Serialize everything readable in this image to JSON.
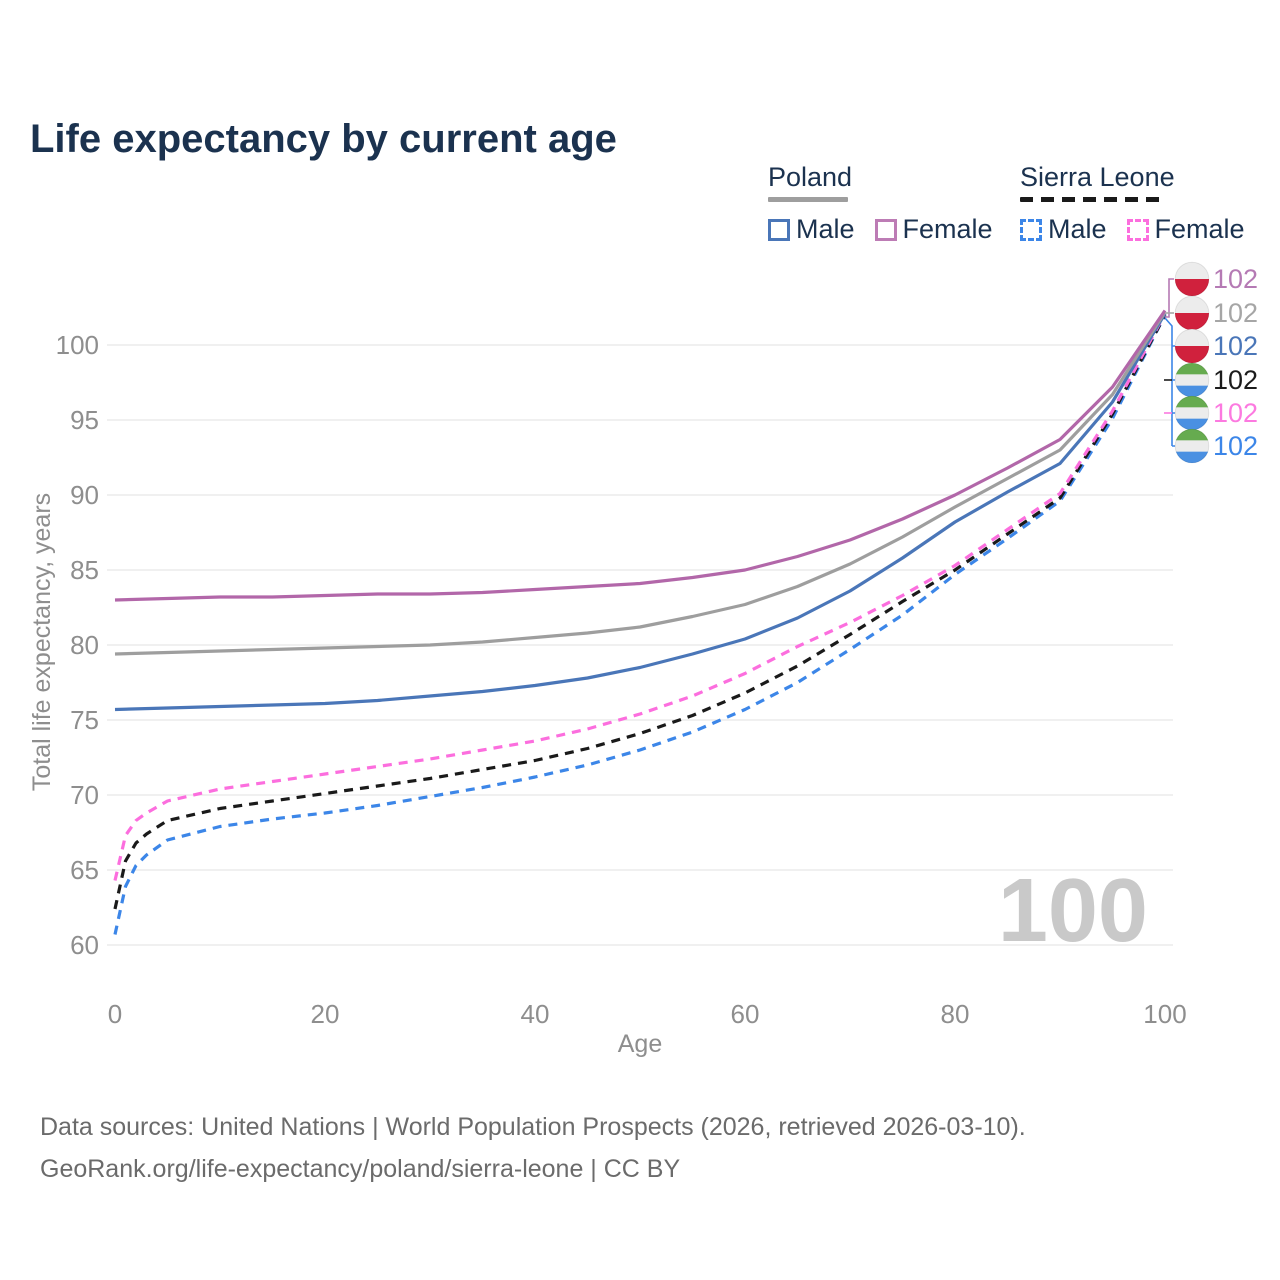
{
  "title": "Life expectancy by current age",
  "legend": {
    "groups": [
      {
        "label": "Poland",
        "key_style": "solid",
        "key_color": "#9e9e9e",
        "items": [
          {
            "label": "Male",
            "swatch_color": "#4a76b8",
            "swatch_style": "solid"
          },
          {
            "label": "Female",
            "swatch_color": "#bd7cb5",
            "swatch_style": "solid"
          }
        ]
      },
      {
        "label": "Sierra Leone",
        "key_style": "dashed",
        "key_color": "#1a1a1a",
        "items": [
          {
            "label": "Male",
            "swatch_color": "#3c86e8",
            "swatch_style": "dashed"
          },
          {
            "label": "Female",
            "swatch_color": "#fc6ede",
            "swatch_style": "dashed"
          }
        ]
      }
    ]
  },
  "footer": {
    "line1": "Data sources: United Nations | World Population Prospects (2026, retrieved 2026-03-10).",
    "line2": "GeoRank.org/life-expectancy/poland/sierra-leone | CC BY"
  },
  "chart_data": {
    "type": "line",
    "title": "Life expectancy by current age",
    "xlabel": "Age",
    "ylabel": "Total life expectancy, years",
    "xlim": [
      0,
      100
    ],
    "ylim": [
      60,
      102.5
    ],
    "xticks": [
      0,
      20,
      40,
      60,
      80,
      100
    ],
    "yticks": [
      60,
      65,
      70,
      75,
      80,
      85,
      90,
      95,
      100
    ],
    "grid": "horizontal",
    "watermark": "100",
    "legend_position": "top-right",
    "flags": {
      "poland": [
        "#ececec",
        "#d0213d"
      ],
      "sierra-leone": [
        "#66ab4f",
        "#ececec",
        "#4a90e2"
      ]
    },
    "series": [
      {
        "id": "sierra-leone-male",
        "name": "Sierra Leone Male",
        "country": "Sierra Leone",
        "sex": "male",
        "line_style": "dashed",
        "color": "#3c86e8",
        "points": [
          [
            0,
            60.7
          ],
          [
            1,
            63.9
          ],
          [
            2,
            65.3
          ],
          [
            3,
            66.0
          ],
          [
            5,
            67.0
          ],
          [
            10,
            67.9
          ],
          [
            15,
            68.4
          ],
          [
            20,
            68.8
          ],
          [
            25,
            69.3
          ],
          [
            30,
            69.9
          ],
          [
            35,
            70.5
          ],
          [
            40,
            71.2
          ],
          [
            45,
            72.0
          ],
          [
            50,
            73.0
          ],
          [
            55,
            74.2
          ],
          [
            60,
            75.7
          ],
          [
            65,
            77.5
          ],
          [
            70,
            79.7
          ],
          [
            75,
            82.0
          ],
          [
            80,
            84.7
          ],
          [
            85,
            87.1
          ],
          [
            90,
            89.6
          ],
          [
            95,
            95.1
          ],
          [
            100,
            102.0
          ]
        ]
      },
      {
        "id": "sierra-leone-all",
        "name": "Sierra Leone Both sexes",
        "country": "Sierra Leone",
        "sex": "all",
        "line_style": "dashed",
        "color": "#1a1a1a",
        "points": [
          [
            0,
            62.4
          ],
          [
            1,
            65.6
          ],
          [
            2,
            66.8
          ],
          [
            3,
            67.4
          ],
          [
            5,
            68.3
          ],
          [
            10,
            69.1
          ],
          [
            15,
            69.6
          ],
          [
            20,
            70.1
          ],
          [
            25,
            70.6
          ],
          [
            30,
            71.1
          ],
          [
            35,
            71.7
          ],
          [
            40,
            72.3
          ],
          [
            45,
            73.1
          ],
          [
            50,
            74.1
          ],
          [
            55,
            75.3
          ],
          [
            60,
            76.8
          ],
          [
            65,
            78.6
          ],
          [
            70,
            80.7
          ],
          [
            75,
            82.9
          ],
          [
            80,
            85.0
          ],
          [
            85,
            87.4
          ],
          [
            90,
            89.8
          ],
          [
            95,
            95.4
          ],
          [
            100,
            102.0
          ]
        ]
      },
      {
        "id": "sierra-leone-female",
        "name": "Sierra Leone Female",
        "country": "Sierra Leone",
        "sex": "female",
        "line_style": "dashed",
        "color": "#fc6ede",
        "points": [
          [
            0,
            64.3
          ],
          [
            1,
            67.3
          ],
          [
            2,
            68.3
          ],
          [
            3,
            68.8
          ],
          [
            5,
            69.6
          ],
          [
            10,
            70.4
          ],
          [
            15,
            70.9
          ],
          [
            20,
            71.4
          ],
          [
            25,
            71.9
          ],
          [
            30,
            72.4
          ],
          [
            35,
            73.0
          ],
          [
            40,
            73.6
          ],
          [
            45,
            74.4
          ],
          [
            50,
            75.4
          ],
          [
            55,
            76.6
          ],
          [
            60,
            78.1
          ],
          [
            65,
            79.9
          ],
          [
            70,
            81.5
          ],
          [
            75,
            83.3
          ],
          [
            80,
            85.3
          ],
          [
            85,
            87.7
          ],
          [
            90,
            90.1
          ],
          [
            95,
            95.6
          ],
          [
            100,
            102.1
          ]
        ]
      },
      {
        "id": "poland-male",
        "name": "Poland Male",
        "country": "Poland",
        "sex": "male",
        "line_style": "solid",
        "color": "#4a76b8",
        "points": [
          [
            0,
            75.7
          ],
          [
            5,
            75.8
          ],
          [
            10,
            75.9
          ],
          [
            15,
            76.0
          ],
          [
            20,
            76.1
          ],
          [
            25,
            76.3
          ],
          [
            30,
            76.6
          ],
          [
            35,
            76.9
          ],
          [
            40,
            77.3
          ],
          [
            45,
            77.8
          ],
          [
            50,
            78.5
          ],
          [
            55,
            79.4
          ],
          [
            60,
            80.4
          ],
          [
            65,
            81.8
          ],
          [
            70,
            83.6
          ],
          [
            75,
            85.8
          ],
          [
            80,
            88.2
          ],
          [
            85,
            90.2
          ],
          [
            90,
            92.1
          ],
          [
            95,
            96.2
          ],
          [
            100,
            102.1
          ]
        ]
      },
      {
        "id": "poland-all",
        "name": "Poland Both sexes",
        "country": "Poland",
        "sex": "all",
        "line_style": "solid",
        "color": "#9e9e9e",
        "points": [
          [
            0,
            79.4
          ],
          [
            5,
            79.5
          ],
          [
            10,
            79.6
          ],
          [
            15,
            79.7
          ],
          [
            20,
            79.8
          ],
          [
            25,
            79.9
          ],
          [
            30,
            80.0
          ],
          [
            35,
            80.2
          ],
          [
            40,
            80.5
          ],
          [
            45,
            80.8
          ],
          [
            50,
            81.2
          ],
          [
            55,
            81.9
          ],
          [
            60,
            82.7
          ],
          [
            65,
            83.9
          ],
          [
            70,
            85.4
          ],
          [
            75,
            87.2
          ],
          [
            80,
            89.2
          ],
          [
            85,
            91.1
          ],
          [
            90,
            93.0
          ],
          [
            95,
            96.7
          ],
          [
            100,
            102.2
          ]
        ]
      },
      {
        "id": "poland-female",
        "name": "Poland Female",
        "country": "Poland",
        "sex": "female",
        "line_style": "solid",
        "color": "#b267a9",
        "points": [
          [
            0,
            83.0
          ],
          [
            5,
            83.1
          ],
          [
            10,
            83.2
          ],
          [
            15,
            83.2
          ],
          [
            20,
            83.3
          ],
          [
            25,
            83.4
          ],
          [
            30,
            83.4
          ],
          [
            35,
            83.5
          ],
          [
            40,
            83.7
          ],
          [
            45,
            83.9
          ],
          [
            50,
            84.1
          ],
          [
            55,
            84.5
          ],
          [
            60,
            85.0
          ],
          [
            65,
            85.9
          ],
          [
            70,
            87.0
          ],
          [
            75,
            88.4
          ],
          [
            80,
            90.0
          ],
          [
            85,
            91.8
          ],
          [
            90,
            93.7
          ],
          [
            95,
            97.2
          ],
          [
            100,
            102.3
          ]
        ]
      }
    ],
    "end_labels": [
      {
        "text": "102",
        "series": "poland-female",
        "flag": "poland",
        "color": "#b57ab4"
      },
      {
        "text": "102",
        "series": "poland-all",
        "flag": "poland",
        "color": "#a6a6a6"
      },
      {
        "text": "102",
        "series": "poland-male",
        "flag": "poland",
        "color": "#4a76b8"
      },
      {
        "text": "102",
        "series": "sierra-leone-all",
        "flag": "sierra-leone",
        "color": "#1c1c1c"
      },
      {
        "text": "102",
        "series": "sierra-leone-female",
        "flag": "sierra-leone",
        "color": "#fc7ae0"
      },
      {
        "text": "102",
        "series": "sierra-leone-male",
        "flag": "sierra-leone",
        "color": "#3c86e8"
      }
    ]
  }
}
